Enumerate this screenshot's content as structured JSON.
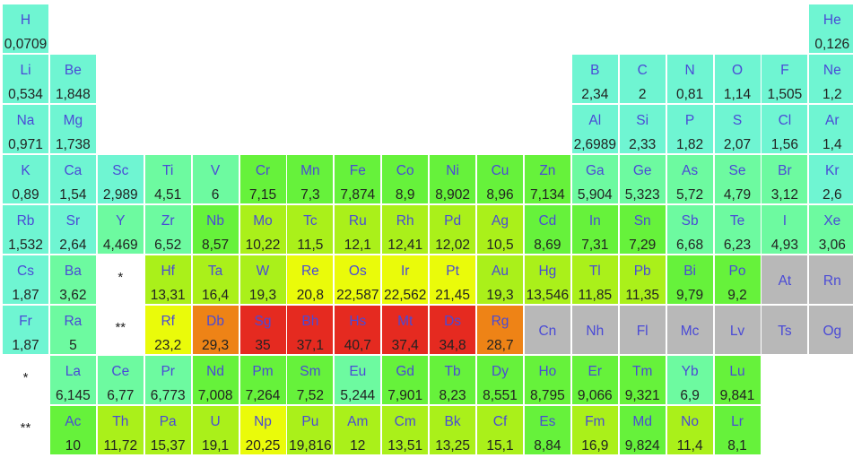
{
  "colors": {
    "lt3": "#6ff5d2",
    "3-7": "#6dfaa0",
    "7-10": "#66f23b",
    "10-20": "#aaf01a",
    "20-25": "#eafb0a",
    "25-30": "#ee8316",
    "gt30": "#e52a20",
    "nodata": "#b8b8b8"
  },
  "markers": [
    {
      "row": 6,
      "col": 3,
      "text": "*"
    },
    {
      "row": 7,
      "col": 3,
      "text": "**"
    },
    {
      "row": 8,
      "col": 1,
      "text": "*"
    },
    {
      "row": 9,
      "col": 1,
      "text": "**"
    }
  ],
  "elements": [
    {
      "row": 1,
      "col": 1,
      "symbol": "H",
      "value": "0,0709",
      "cat": "lt3"
    },
    {
      "row": 1,
      "col": 18,
      "symbol": "He",
      "value": "0,126",
      "cat": "lt3"
    },
    {
      "row": 2,
      "col": 1,
      "symbol": "Li",
      "value": "0,534",
      "cat": "lt3"
    },
    {
      "row": 2,
      "col": 2,
      "symbol": "Be",
      "value": "1,848",
      "cat": "lt3"
    },
    {
      "row": 2,
      "col": 13,
      "symbol": "B",
      "value": "2,34",
      "cat": "lt3"
    },
    {
      "row": 2,
      "col": 14,
      "symbol": "C",
      "value": "2",
      "cat": "lt3"
    },
    {
      "row": 2,
      "col": 15,
      "symbol": "N",
      "value": "0,81",
      "cat": "lt3"
    },
    {
      "row": 2,
      "col": 16,
      "symbol": "O",
      "value": "1,14",
      "cat": "lt3"
    },
    {
      "row": 2,
      "col": 17,
      "symbol": "F",
      "value": "1,505",
      "cat": "lt3"
    },
    {
      "row": 2,
      "col": 18,
      "symbol": "Ne",
      "value": "1,2",
      "cat": "lt3"
    },
    {
      "row": 3,
      "col": 1,
      "symbol": "Na",
      "value": "0,971",
      "cat": "lt3"
    },
    {
      "row": 3,
      "col": 2,
      "symbol": "Mg",
      "value": "1,738",
      "cat": "lt3"
    },
    {
      "row": 3,
      "col": 13,
      "symbol": "Al",
      "value": "2,6989",
      "cat": "lt3"
    },
    {
      "row": 3,
      "col": 14,
      "symbol": "Si",
      "value": "2,33",
      "cat": "lt3"
    },
    {
      "row": 3,
      "col": 15,
      "symbol": "P",
      "value": "1,82",
      "cat": "lt3"
    },
    {
      "row": 3,
      "col": 16,
      "symbol": "S",
      "value": "2,07",
      "cat": "lt3"
    },
    {
      "row": 3,
      "col": 17,
      "symbol": "Cl",
      "value": "1,56",
      "cat": "lt3"
    },
    {
      "row": 3,
      "col": 18,
      "symbol": "Ar",
      "value": "1,4",
      "cat": "lt3"
    },
    {
      "row": 4,
      "col": 1,
      "symbol": "K",
      "value": "0,89",
      "cat": "lt3"
    },
    {
      "row": 4,
      "col": 2,
      "symbol": "Ca",
      "value": "1,54",
      "cat": "lt3"
    },
    {
      "row": 4,
      "col": 3,
      "symbol": "Sc",
      "value": "2,989",
      "cat": "lt3"
    },
    {
      "row": 4,
      "col": 4,
      "symbol": "Ti",
      "value": "4,51",
      "cat": "3-7"
    },
    {
      "row": 4,
      "col": 5,
      "symbol": "V",
      "value": "6",
      "cat": "3-7"
    },
    {
      "row": 4,
      "col": 6,
      "symbol": "Cr",
      "value": "7,15",
      "cat": "7-10"
    },
    {
      "row": 4,
      "col": 7,
      "symbol": "Mn",
      "value": "7,3",
      "cat": "7-10"
    },
    {
      "row": 4,
      "col": 8,
      "symbol": "Fe",
      "value": "7,874",
      "cat": "7-10"
    },
    {
      "row": 4,
      "col": 9,
      "symbol": "Co",
      "value": "8,9",
      "cat": "7-10"
    },
    {
      "row": 4,
      "col": 10,
      "symbol": "Ni",
      "value": "8,902",
      "cat": "7-10"
    },
    {
      "row": 4,
      "col": 11,
      "symbol": "Cu",
      "value": "8,96",
      "cat": "7-10"
    },
    {
      "row": 4,
      "col": 12,
      "symbol": "Zn",
      "value": "7,134",
      "cat": "7-10"
    },
    {
      "row": 4,
      "col": 13,
      "symbol": "Ga",
      "value": "5,904",
      "cat": "3-7"
    },
    {
      "row": 4,
      "col": 14,
      "symbol": "Ge",
      "value": "5,323",
      "cat": "3-7"
    },
    {
      "row": 4,
      "col": 15,
      "symbol": "As",
      "value": "5,72",
      "cat": "3-7"
    },
    {
      "row": 4,
      "col": 16,
      "symbol": "Se",
      "value": "4,79",
      "cat": "3-7"
    },
    {
      "row": 4,
      "col": 17,
      "symbol": "Br",
      "value": "3,12",
      "cat": "3-7"
    },
    {
      "row": 4,
      "col": 18,
      "symbol": "Kr",
      "value": "2,6",
      "cat": "lt3"
    },
    {
      "row": 5,
      "col": 1,
      "symbol": "Rb",
      "value": "1,532",
      "cat": "lt3"
    },
    {
      "row": 5,
      "col": 2,
      "symbol": "Sr",
      "value": "2,64",
      "cat": "lt3"
    },
    {
      "row": 5,
      "col": 3,
      "symbol": "Y",
      "value": "4,469",
      "cat": "3-7"
    },
    {
      "row": 5,
      "col": 4,
      "symbol": "Zr",
      "value": "6,52",
      "cat": "3-7"
    },
    {
      "row": 5,
      "col": 5,
      "symbol": "Nb",
      "value": "8,57",
      "cat": "7-10"
    },
    {
      "row": 5,
      "col": 6,
      "symbol": "Mo",
      "value": "10,22",
      "cat": "10-20"
    },
    {
      "row": 5,
      "col": 7,
      "symbol": "Tc",
      "value": "11,5",
      "cat": "10-20"
    },
    {
      "row": 5,
      "col": 8,
      "symbol": "Ru",
      "value": "12,1",
      "cat": "10-20"
    },
    {
      "row": 5,
      "col": 9,
      "symbol": "Rh",
      "value": "12,41",
      "cat": "10-20"
    },
    {
      "row": 5,
      "col": 10,
      "symbol": "Pd",
      "value": "12,02",
      "cat": "10-20"
    },
    {
      "row": 5,
      "col": 11,
      "symbol": "Ag",
      "value": "10,5",
      "cat": "10-20"
    },
    {
      "row": 5,
      "col": 12,
      "symbol": "Cd",
      "value": "8,69",
      "cat": "7-10"
    },
    {
      "row": 5,
      "col": 13,
      "symbol": "In",
      "value": "7,31",
      "cat": "7-10"
    },
    {
      "row": 5,
      "col": 14,
      "symbol": "Sn",
      "value": "7,29",
      "cat": "7-10"
    },
    {
      "row": 5,
      "col": 15,
      "symbol": "Sb",
      "value": "6,68",
      "cat": "3-7"
    },
    {
      "row": 5,
      "col": 16,
      "symbol": "Te",
      "value": "6,23",
      "cat": "3-7"
    },
    {
      "row": 5,
      "col": 17,
      "symbol": "I",
      "value": "4,93",
      "cat": "3-7"
    },
    {
      "row": 5,
      "col": 18,
      "symbol": "Xe",
      "value": "3,06",
      "cat": "3-7"
    },
    {
      "row": 6,
      "col": 1,
      "symbol": "Cs",
      "value": "1,87",
      "cat": "lt3"
    },
    {
      "row": 6,
      "col": 2,
      "symbol": "Ba",
      "value": "3,62",
      "cat": "3-7"
    },
    {
      "row": 6,
      "col": 4,
      "symbol": "Hf",
      "value": "13,31",
      "cat": "10-20"
    },
    {
      "row": 6,
      "col": 5,
      "symbol": "Ta",
      "value": "16,4",
      "cat": "10-20"
    },
    {
      "row": 6,
      "col": 6,
      "symbol": "W",
      "value": "19,3",
      "cat": "10-20"
    },
    {
      "row": 6,
      "col": 7,
      "symbol": "Re",
      "value": "20,8",
      "cat": "20-25"
    },
    {
      "row": 6,
      "col": 8,
      "symbol": "Os",
      "value": "22,587",
      "cat": "20-25"
    },
    {
      "row": 6,
      "col": 9,
      "symbol": "Ir",
      "value": "22,562",
      "cat": "20-25"
    },
    {
      "row": 6,
      "col": 10,
      "symbol": "Pt",
      "value": "21,45",
      "cat": "20-25"
    },
    {
      "row": 6,
      "col": 11,
      "symbol": "Au",
      "value": "19,3",
      "cat": "10-20"
    },
    {
      "row": 6,
      "col": 12,
      "symbol": "Hg",
      "value": "13,546",
      "cat": "10-20"
    },
    {
      "row": 6,
      "col": 13,
      "symbol": "Tl",
      "value": "11,85",
      "cat": "10-20"
    },
    {
      "row": 6,
      "col": 14,
      "symbol": "Pb",
      "value": "11,35",
      "cat": "10-20"
    },
    {
      "row": 6,
      "col": 15,
      "symbol": "Bi",
      "value": "9,79",
      "cat": "7-10"
    },
    {
      "row": 6,
      "col": 16,
      "symbol": "Po",
      "value": "9,2",
      "cat": "7-10"
    },
    {
      "row": 6,
      "col": 17,
      "symbol": "At",
      "value": "",
      "cat": "nodata"
    },
    {
      "row": 6,
      "col": 18,
      "symbol": "Rn",
      "value": "",
      "cat": "nodata"
    },
    {
      "row": 7,
      "col": 1,
      "symbol": "Fr",
      "value": "1,87",
      "cat": "lt3"
    },
    {
      "row": 7,
      "col": 2,
      "symbol": "Ra",
      "value": "5",
      "cat": "3-7"
    },
    {
      "row": 7,
      "col": 4,
      "symbol": "Rf",
      "value": "23,2",
      "cat": "20-25"
    },
    {
      "row": 7,
      "col": 5,
      "symbol": "Db",
      "value": "29,3",
      "cat": "25-30"
    },
    {
      "row": 7,
      "col": 6,
      "symbol": "Sg",
      "value": "35",
      "cat": "gt30"
    },
    {
      "row": 7,
      "col": 7,
      "symbol": "Bh",
      "value": "37,1",
      "cat": "gt30"
    },
    {
      "row": 7,
      "col": 8,
      "symbol": "Hs",
      "value": "40,7",
      "cat": "gt30"
    },
    {
      "row": 7,
      "col": 9,
      "symbol": "Mt",
      "value": "37,4",
      "cat": "gt30"
    },
    {
      "row": 7,
      "col": 10,
      "symbol": "Ds",
      "value": "34,8",
      "cat": "gt30"
    },
    {
      "row": 7,
      "col": 11,
      "symbol": "Rg",
      "value": "28,7",
      "cat": "25-30"
    },
    {
      "row": 7,
      "col": 12,
      "symbol": "Cn",
      "value": "",
      "cat": "nodata"
    },
    {
      "row": 7,
      "col": 13,
      "symbol": "Nh",
      "value": "",
      "cat": "nodata"
    },
    {
      "row": 7,
      "col": 14,
      "symbol": "Fl",
      "value": "",
      "cat": "nodata"
    },
    {
      "row": 7,
      "col": 15,
      "symbol": "Mc",
      "value": "",
      "cat": "nodata"
    },
    {
      "row": 7,
      "col": 16,
      "symbol": "Lv",
      "value": "",
      "cat": "nodata"
    },
    {
      "row": 7,
      "col": 17,
      "symbol": "Ts",
      "value": "",
      "cat": "nodata"
    },
    {
      "row": 7,
      "col": 18,
      "symbol": "Og",
      "value": "",
      "cat": "nodata"
    },
    {
      "row": 8,
      "col": 2,
      "symbol": "La",
      "value": "6,145",
      "cat": "3-7"
    },
    {
      "row": 8,
      "col": 3,
      "symbol": "Ce",
      "value": "6,77",
      "cat": "3-7"
    },
    {
      "row": 8,
      "col": 4,
      "symbol": "Pr",
      "value": "6,773",
      "cat": "3-7"
    },
    {
      "row": 8,
      "col": 5,
      "symbol": "Nd",
      "value": "7,008",
      "cat": "7-10"
    },
    {
      "row": 8,
      "col": 6,
      "symbol": "Pm",
      "value": "7,264",
      "cat": "7-10"
    },
    {
      "row": 8,
      "col": 7,
      "symbol": "Sm",
      "value": "7,52",
      "cat": "7-10"
    },
    {
      "row": 8,
      "col": 8,
      "symbol": "Eu",
      "value": "5,244",
      "cat": "3-7"
    },
    {
      "row": 8,
      "col": 9,
      "symbol": "Gd",
      "value": "7,901",
      "cat": "7-10"
    },
    {
      "row": 8,
      "col": 10,
      "symbol": "Tb",
      "value": "8,23",
      "cat": "7-10"
    },
    {
      "row": 8,
      "col": 11,
      "symbol": "Dy",
      "value": "8,551",
      "cat": "7-10"
    },
    {
      "row": 8,
      "col": 12,
      "symbol": "Ho",
      "value": "8,795",
      "cat": "7-10"
    },
    {
      "row": 8,
      "col": 13,
      "symbol": "Er",
      "value": "9,066",
      "cat": "7-10"
    },
    {
      "row": 8,
      "col": 14,
      "symbol": "Tm",
      "value": "9,321",
      "cat": "7-10"
    },
    {
      "row": 8,
      "col": 15,
      "symbol": "Yb",
      "value": "6,9",
      "cat": "3-7"
    },
    {
      "row": 8,
      "col": 16,
      "symbol": "Lu",
      "value": "9,841",
      "cat": "7-10"
    },
    {
      "row": 9,
      "col": 2,
      "symbol": "Ac",
      "value": "10",
      "cat": "7-10"
    },
    {
      "row": 9,
      "col": 3,
      "symbol": "Th",
      "value": "11,72",
      "cat": "10-20"
    },
    {
      "row": 9,
      "col": 4,
      "symbol": "Pa",
      "value": "15,37",
      "cat": "10-20"
    },
    {
      "row": 9,
      "col": 5,
      "symbol": "U",
      "value": "19,1",
      "cat": "10-20"
    },
    {
      "row": 9,
      "col": 6,
      "symbol": "Np",
      "value": "20,25",
      "cat": "20-25"
    },
    {
      "row": 9,
      "col": 7,
      "symbol": "Pu",
      "value": "19,816",
      "cat": "10-20"
    },
    {
      "row": 9,
      "col": 8,
      "symbol": "Am",
      "value": "12",
      "cat": "10-20"
    },
    {
      "row": 9,
      "col": 9,
      "symbol": "Cm",
      "value": "13,51",
      "cat": "10-20"
    },
    {
      "row": 9,
      "col": 10,
      "symbol": "Bk",
      "value": "13,25",
      "cat": "10-20"
    },
    {
      "row": 9,
      "col": 11,
      "symbol": "Cf",
      "value": "15,1",
      "cat": "10-20"
    },
    {
      "row": 9,
      "col": 12,
      "symbol": "Es",
      "value": "8,84",
      "cat": "7-10"
    },
    {
      "row": 9,
      "col": 13,
      "symbol": "Fm",
      "value": "16,9",
      "cat": "10-20"
    },
    {
      "row": 9,
      "col": 14,
      "symbol": "Md",
      "value": "9,824",
      "cat": "7-10"
    },
    {
      "row": 9,
      "col": 15,
      "symbol": "No",
      "value": "11,4",
      "cat": "10-20"
    },
    {
      "row": 9,
      "col": 16,
      "symbol": "Lr",
      "value": "8,1",
      "cat": "7-10"
    }
  ]
}
